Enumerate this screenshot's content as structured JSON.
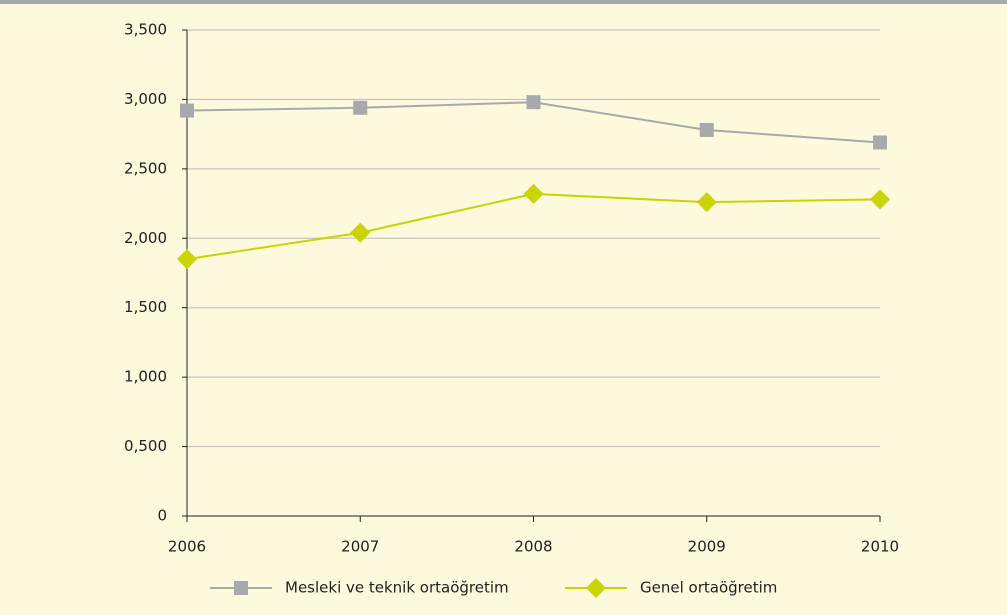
{
  "chart_data": {
    "type": "line",
    "categories": [
      "2006",
      "2007",
      "2008",
      "2009",
      "2010"
    ],
    "series": [
      {
        "name": "Mesleki ve teknik ortaöğretim",
        "color": "#a7a9ac",
        "marker": "square",
        "values": [
          2.92,
          2.94,
          2.98,
          2.78,
          2.69
        ]
      },
      {
        "name": "Genel ortaöğretim",
        "color": "#c9d400",
        "marker": "diamond",
        "values": [
          1.85,
          2.04,
          2.32,
          2.26,
          2.28
        ]
      }
    ],
    "ylim": [
      0,
      3.5
    ],
    "yticks": [
      0,
      {
        "value": 0.5,
        "label": "0,500"
      },
      {
        "value": 1,
        "label": "1,000"
      },
      {
        "value": 1.5,
        "label": "1,500"
      },
      {
        "value": 2,
        "label": "2,000"
      },
      {
        "value": 2.5,
        "label": "2,500"
      },
      {
        "value": 3,
        "label": "3,000"
      },
      {
        "value": 3.5,
        "label": "3,500"
      }
    ],
    "grid": true,
    "legend": "bottom"
  }
}
